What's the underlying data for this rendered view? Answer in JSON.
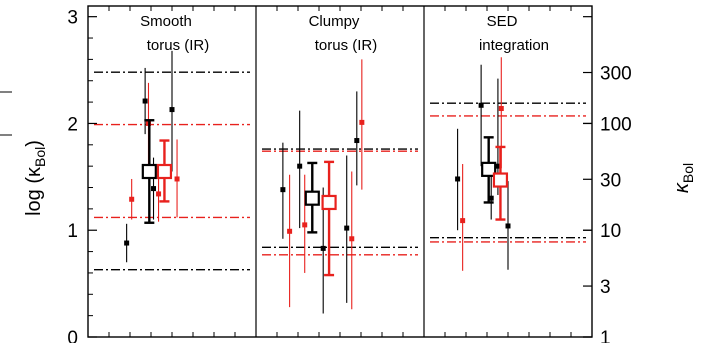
{
  "chart_data": {
    "type": "scatter",
    "title": "",
    "y_left": {
      "label": "log (κ",
      "label_sub": "Bol",
      "label_tail": ")",
      "range": [
        0,
        3.1
      ],
      "ticks": [
        0,
        1,
        2,
        3
      ],
      "tick_labels": [
        "0",
        "1",
        "2",
        "3"
      ]
    },
    "y_right": {
      "label": "κ",
      "label_sub": "Bol",
      "scale": "log",
      "ticks": [
        1,
        3,
        10,
        30,
        100,
        300
      ],
      "tick_labels": [
        "1",
        "3",
        "10",
        "30",
        "100",
        "300"
      ]
    },
    "x_range": [
      0,
      3
    ],
    "x_dividers": [
      1,
      2
    ],
    "groups": [
      {
        "label_lines": [
          "Smooth",
          "torus (IR)"
        ],
        "black_lines": [
          2.48,
          0.63
        ],
        "red_lines": [
          1.99,
          1.12
        ],
        "points": [
          {
            "x": 0.23,
            "y": 0.88,
            "lo": 0.7,
            "hi": 1.06,
            "color": "black"
          },
          {
            "x": 0.26,
            "y": 1.29,
            "lo": 1.1,
            "hi": 1.48,
            "color": "red"
          },
          {
            "x": 0.34,
            "y": 2.21,
            "lo": 1.9,
            "hi": 2.52,
            "color": "black"
          },
          {
            "x": 0.36,
            "y": 2.0,
            "lo": 1.62,
            "hi": 2.38,
            "color": "red"
          },
          {
            "x": 0.39,
            "y": 1.39,
            "lo": 1.1,
            "hi": 1.68,
            "color": "black"
          },
          {
            "x": 0.42,
            "y": 1.34,
            "lo": 1.08,
            "hi": 1.58,
            "color": "red"
          },
          {
            "x": 0.5,
            "y": 2.13,
            "lo": 1.55,
            "hi": 2.68,
            "color": "black"
          },
          {
            "x": 0.53,
            "y": 1.48,
            "lo": 1.12,
            "hi": 1.85,
            "color": "red"
          }
        ],
        "black_mean": {
          "x": 0.365,
          "y": 1.55,
          "lo": 1.07,
          "hi": 2.03
        },
        "red_mean": {
          "x": 0.455,
          "y": 1.55,
          "lo": 1.27,
          "hi": 1.84
        }
      },
      {
        "label_lines": [
          "Clumpy",
          "torus (IR)"
        ],
        "black_lines": [
          1.76,
          0.84
        ],
        "red_lines": [
          1.74,
          0.77
        ],
        "points": [
          {
            "x": 1.16,
            "y": 1.38,
            "lo": 0.92,
            "hi": 1.82,
            "color": "black"
          },
          {
            "x": 1.2,
            "y": 0.99,
            "lo": 0.28,
            "hi": 1.52,
            "color": "red"
          },
          {
            "x": 1.26,
            "y": 1.6,
            "lo": 1.02,
            "hi": 2.12,
            "color": "black"
          },
          {
            "x": 1.29,
            "y": 1.05,
            "lo": 0.6,
            "hi": 1.52,
            "color": "red"
          },
          {
            "x": 1.4,
            "y": 0.83,
            "lo": 0.22,
            "hi": 1.4,
            "color": "black"
          },
          {
            "x": 1.54,
            "y": 1.02,
            "lo": 0.32,
            "hi": 1.7,
            "color": "black"
          },
          {
            "x": 1.57,
            "y": 0.92,
            "lo": 0.26,
            "hi": 1.55,
            "color": "red"
          },
          {
            "x": 1.6,
            "y": 1.84,
            "lo": 1.42,
            "hi": 2.3,
            "color": "black"
          },
          {
            "x": 1.63,
            "y": 2.01,
            "lo": 1.38,
            "hi": 2.6,
            "color": "red"
          }
        ],
        "black_mean": {
          "x": 1.335,
          "y": 1.3,
          "lo": 0.98,
          "hi": 1.63
        },
        "red_mean": {
          "x": 1.435,
          "y": 1.26,
          "lo": 0.58,
          "hi": 1.64
        }
      },
      {
        "label_lines": [
          "SED",
          "integration"
        ],
        "black_lines": [
          2.19,
          0.93
        ],
        "red_lines": [
          2.07,
          0.89
        ],
        "points": [
          {
            "x": 2.2,
            "y": 1.48,
            "lo": 1.0,
            "hi": 1.95,
            "color": "black"
          },
          {
            "x": 2.23,
            "y": 1.09,
            "lo": 0.62,
            "hi": 1.62,
            "color": "red"
          },
          {
            "x": 2.34,
            "y": 2.17,
            "lo": 1.6,
            "hi": 2.55,
            "color": "black"
          },
          {
            "x": 2.4,
            "y": 1.3,
            "lo": 1.1,
            "hi": 1.53,
            "color": "black"
          },
          {
            "x": 2.44,
            "y": 1.6,
            "lo": 1.33,
            "hi": 2.42,
            "color": "black"
          },
          {
            "x": 2.46,
            "y": 2.14,
            "lo": 1.58,
            "hi": 2.62,
            "color": "red"
          },
          {
            "x": 2.5,
            "y": 1.04,
            "lo": 0.63,
            "hi": 1.46,
            "color": "black"
          }
        ],
        "black_mean": {
          "x": 2.385,
          "y": 1.57,
          "lo": 1.26,
          "hi": 1.87
        },
        "red_mean": {
          "x": 2.455,
          "y": 1.47,
          "lo": 1.1,
          "hi": 1.78
        }
      }
    ],
    "colors": {
      "black": "#000000",
      "red": "#e8211d"
    }
  }
}
